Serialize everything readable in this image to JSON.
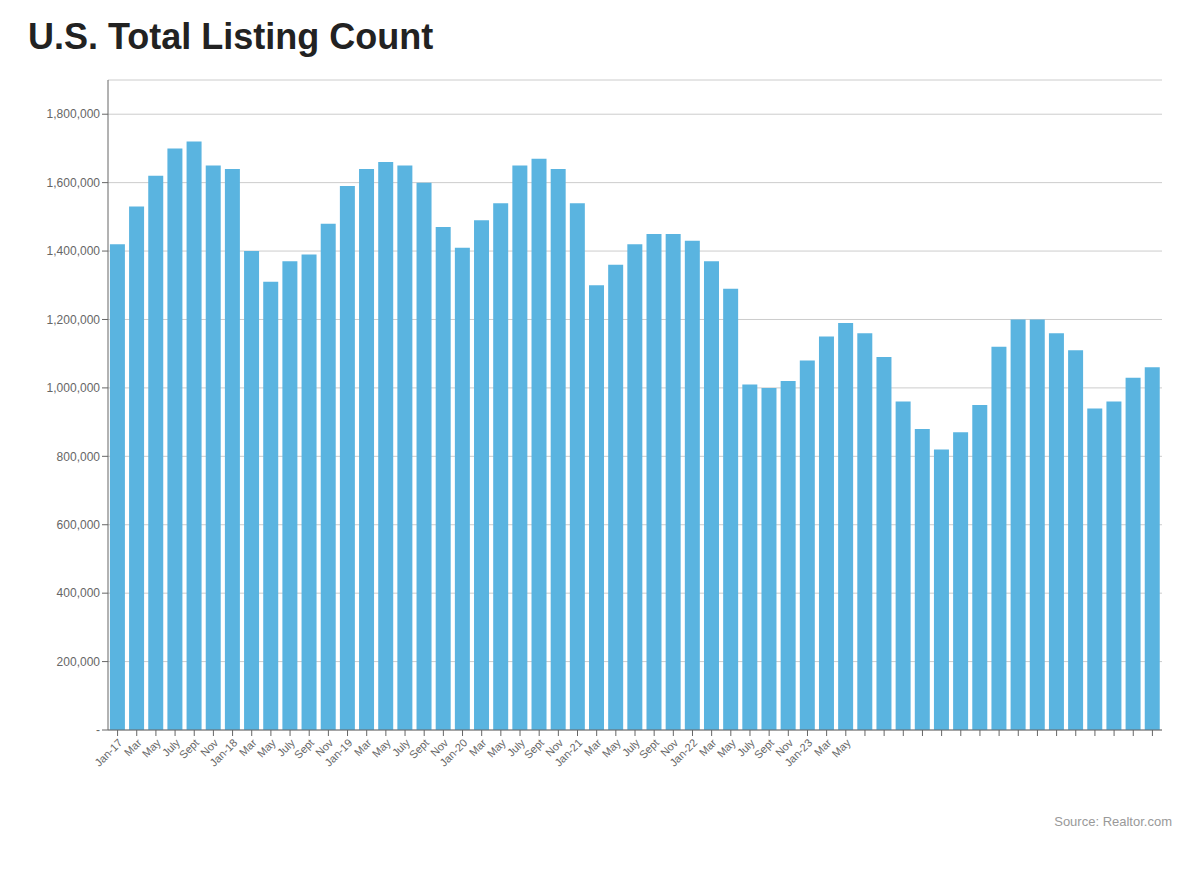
{
  "chart_data": {
    "type": "bar",
    "title": "U.S. Total Listing Count",
    "annotations": [
      "Source: Realtor.com"
    ],
    "categories": [
      "Jan-17",
      "Mar",
      "May",
      "July",
      "Sept",
      "Nov",
      "Jan-18",
      "Mar",
      "May",
      "July",
      "Sept",
      "Nov",
      "Jan-19",
      "Mar",
      "May",
      "July",
      "Sept",
      "Nov",
      "Jan-20",
      "Mar",
      "May",
      "July",
      "Sept",
      "Nov",
      "Jan-21",
      "Mar",
      "May",
      "July",
      "Sept",
      "Nov",
      "Jan-22",
      "Mar",
      "May",
      "July",
      "Sept",
      "Nov",
      "Jan-23",
      "Mar",
      "May",
      null,
      null,
      null,
      null,
      null,
      null,
      null,
      null,
      null,
      null,
      null,
      null,
      null,
      null,
      null,
      null
    ],
    "values": [
      1420000,
      1530000,
      1620000,
      1700000,
      1720000,
      1650000,
      1640000,
      1400000,
      1310000,
      1370000,
      1390000,
      1480000,
      1590000,
      1640000,
      1660000,
      1650000,
      1600000,
      1470000,
      1410000,
      1490000,
      1540000,
      1650000,
      1670000,
      1640000,
      1540000,
      1300000,
      1360000,
      1420000,
      1450000,
      1450000,
      1430000,
      1370000,
      1290000,
      1010000,
      1000000,
      1020000,
      1080000,
      1150000,
      1190000,
      1160000,
      1090000,
      960000,
      880000,
      820000,
      870000,
      950000,
      1120000,
      1200000,
      1200000,
      1160000,
      1110000,
      940000,
      960000,
      1030000,
      1060000
    ],
    "color": "#5ab4e0",
    "ylim": [
      0,
      1900000
    ],
    "yticks": [
      {
        "value": 0,
        "label": "-"
      },
      {
        "value": 200000,
        "label": "200,000"
      },
      {
        "value": 400000,
        "label": "400,000"
      },
      {
        "value": 600000,
        "label": "600,000"
      },
      {
        "value": 800000,
        "label": "800,000"
      },
      {
        "value": 1000000,
        "label": "1,000,000"
      },
      {
        "value": 1200000,
        "label": "1,200,000"
      },
      {
        "value": 1400000,
        "label": "1,400,000"
      },
      {
        "value": 1600000,
        "label": "1,600,000"
      },
      {
        "value": 1800000,
        "label": "1,800,000"
      }
    ],
    "grid": true
  }
}
